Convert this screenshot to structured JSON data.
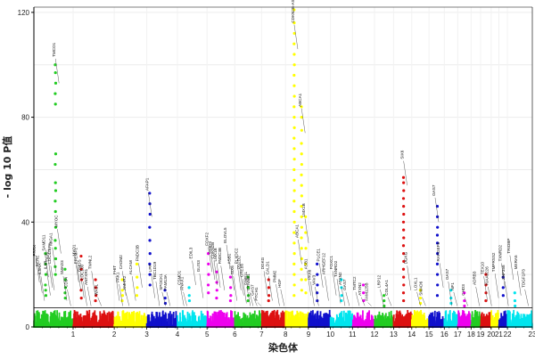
{
  "chart_data": {
    "type": "scatter",
    "title": "",
    "xlabel": "染色体",
    "ylabel": "- log 10 P值",
    "ylim": [
      0,
      122
    ],
    "yticks": [
      0,
      40,
      80,
      120
    ],
    "significance_line": 7.3,
    "grid": true,
    "chromosomes": [
      {
        "name": "1",
        "len": 4.1,
        "color": "#22cc22"
      },
      {
        "name": "2",
        "len": 4.3,
        "color": "#dd1111"
      },
      {
        "name": "3",
        "len": 3.4,
        "color": "#ffff00"
      },
      {
        "name": "4",
        "len": 3.2,
        "color": "#1111cc"
      },
      {
        "name": "5",
        "len": 3.1,
        "color": "#00e5ee"
      },
      {
        "name": "6",
        "len": 2.9,
        "color": "#ee00ee"
      },
      {
        "name": "7",
        "len": 2.8,
        "color": "#22cc22"
      },
      {
        "name": "8",
        "len": 2.5,
        "color": "#dd1111"
      },
      {
        "name": "9",
        "len": 2.4,
        "color": "#ffff00"
      },
      {
        "name": "10",
        "len": 2.3,
        "color": "#1111cc"
      },
      {
        "name": "11",
        "len": 2.3,
        "color": "#00e5ee"
      },
      {
        "name": "12",
        "len": 2.3,
        "color": "#ee00ee"
      },
      {
        "name": "13",
        "len": 2.0,
        "color": "#22cc22"
      },
      {
        "name": "14",
        "len": 1.9,
        "color": "#dd1111"
      },
      {
        "name": "15",
        "len": 1.8,
        "color": "#ffff00"
      },
      {
        "name": "16",
        "len": 1.6,
        "color": "#1111cc"
      },
      {
        "name": "17",
        "len": 1.4,
        "color": "#00e5ee"
      },
      {
        "name": "18",
        "len": 1.4,
        "color": "#ee00ee"
      },
      {
        "name": "19",
        "len": 1.0,
        "color": "#22cc22"
      },
      {
        "name": "20",
        "len": 1.1,
        "color": "#dd1111"
      },
      {
        "name": "21",
        "len": 0.8,
        "color": "#ffff00"
      },
      {
        "name": "22",
        "len": 0.9,
        "color": "#1111cc"
      },
      {
        "name": "23",
        "len": 2.6,
        "color": "#00e5ee"
      }
    ],
    "peaks": [
      {
        "chr": "1",
        "pos": 0.55,
        "pvals": [
          100,
          97,
          93,
          89,
          85,
          66,
          62,
          55,
          52,
          48,
          44,
          38,
          33,
          30,
          26,
          23,
          20
        ]
      },
      {
        "chr": "1",
        "pos": 0.3,
        "pvals": [
          28,
          24,
          20,
          16,
          14,
          12
        ]
      },
      {
        "chr": "1",
        "pos": 0.8,
        "pvals": [
          22,
          18,
          15,
          13,
          11
        ]
      },
      {
        "chr": "2",
        "pos": 0.2,
        "pvals": [
          27,
          22,
          18,
          14,
          11
        ]
      },
      {
        "chr": "2",
        "pos": 0.55,
        "pvals": [
          18,
          15,
          12,
          10
        ]
      },
      {
        "chr": "3",
        "pos": 0.25,
        "pvals": [
          18,
          14,
          12,
          10
        ]
      },
      {
        "chr": "3",
        "pos": 0.7,
        "pvals": [
          24,
          19,
          15,
          12
        ]
      },
      {
        "chr": "4",
        "pos": 0.1,
        "pvals": [
          51,
          47,
          43,
          38,
          33,
          28,
          24,
          20,
          16
        ]
      },
      {
        "chr": "4",
        "pos": 0.6,
        "pvals": [
          14,
          11,
          9
        ]
      },
      {
        "chr": "5",
        "pos": 0.4,
        "pvals": [
          15,
          12,
          10
        ]
      },
      {
        "chr": "6",
        "pos": 0.05,
        "pvals": [
          28,
          24,
          20,
          16,
          13
        ]
      },
      {
        "chr": "6",
        "pos": 0.35,
        "pvals": [
          21,
          17,
          14,
          11
        ]
      },
      {
        "chr": "6",
        "pos": 0.85,
        "pvals": [
          19,
          15,
          12,
          10
        ]
      },
      {
        "chr": "7",
        "pos": 0.5,
        "pvals": [
          19,
          15,
          12,
          10
        ]
      },
      {
        "chr": "8",
        "pos": 0.3,
        "pvals": [
          18,
          15,
          12,
          10
        ]
      },
      {
        "chr": "9",
        "pos": 0.38,
        "pvals": [
          121,
          116,
          112,
          108,
          104,
          100,
          96,
          92,
          88,
          84,
          80,
          76,
          72,
          68,
          64,
          60,
          56,
          52,
          48,
          44,
          40,
          36,
          32,
          28,
          24,
          20,
          16,
          12
        ]
      },
      {
        "chr": "9",
        "pos": 0.7,
        "pvals": [
          84,
          80,
          75,
          70,
          66,
          62,
          58,
          54,
          50,
          46,
          42,
          38,
          34,
          30,
          26,
          22,
          18,
          14
        ]
      },
      {
        "chr": "9",
        "pos": 0.88,
        "pvals": [
          42,
          36,
          30,
          24,
          18,
          13
        ]
      },
      {
        "chr": "10",
        "pos": 0.4,
        "pvals": [
          24,
          20,
          16,
          13,
          10
        ]
      },
      {
        "chr": "11",
        "pos": 0.5,
        "pvals": [
          18,
          15,
          12,
          10
        ]
      },
      {
        "chr": "12",
        "pos": 0.5,
        "pvals": [
          16,
          13,
          10
        ]
      },
      {
        "chr": "13",
        "pos": 0.5,
        "pvals": [
          12,
          10,
          8
        ]
      },
      {
        "chr": "14",
        "pos": 0.55,
        "pvals": [
          57,
          55,
          52,
          49,
          46,
          43,
          40,
          37,
          34,
          31,
          28,
          25,
          22,
          19,
          16,
          13,
          10
        ]
      },
      {
        "chr": "15",
        "pos": 0.5,
        "pvals": [
          14,
          11,
          9
        ]
      },
      {
        "chr": "16",
        "pos": 0.55,
        "pvals": [
          46,
          42,
          38,
          35,
          32,
          28,
          24,
          20,
          16,
          12
        ]
      },
      {
        "chr": "17",
        "pos": 0.5,
        "pvals": [
          14,
          11,
          9
        ]
      },
      {
        "chr": "18",
        "pos": 0.5,
        "pvals": [
          13,
          10,
          8
        ]
      },
      {
        "chr": "20",
        "pos": 0.5,
        "pvals": [
          20,
          16,
          13,
          10
        ]
      },
      {
        "chr": "22",
        "pos": 0.5,
        "pvals": [
          19,
          15,
          12
        ]
      },
      {
        "chr": "23",
        "pos": 0.3,
        "pvals": [
          13,
          10,
          8
        ]
      }
    ],
    "annotations": [
      {
        "chr": "1",
        "pos": 0.05,
        "y": 27,
        "label": "PRRX"
      },
      {
        "chr": "1",
        "pos": 0.12,
        "y": 23,
        "label": "RERE"
      },
      {
        "chr": "1",
        "pos": 0.18,
        "y": 20,
        "label": "IL5RA"
      },
      {
        "chr": "1",
        "pos": 0.28,
        "y": 29,
        "label": "SAMD11"
      },
      {
        "chr": "1",
        "pos": 0.33,
        "y": 22,
        "label": "IL6R"
      },
      {
        "chr": "1",
        "pos": 0.38,
        "y": 25,
        "label": "DARC"
      },
      {
        "chr": "1",
        "pos": 0.43,
        "y": 24,
        "label": "CDC42BPA"
      },
      {
        "chr": "1",
        "pos": 0.47,
        "y": 31,
        "label": "MIGA1"
      },
      {
        "chr": "1",
        "pos": 0.55,
        "y": 103,
        "label": "TMCO1"
      },
      {
        "chr": "1",
        "pos": 0.6,
        "y": 38,
        "label": "MYOC"
      },
      {
        "chr": "1",
        "pos": 0.75,
        "y": 20,
        "label": "SMAD3"
      },
      {
        "chr": "1",
        "pos": 0.85,
        "y": 15,
        "label": "CD34"
      },
      {
        "chr": "2",
        "pos": 0.05,
        "y": 27,
        "label": "MYO1"
      },
      {
        "chr": "2",
        "pos": 0.1,
        "y": 24,
        "label": "EFEMP1"
      },
      {
        "chr": "2",
        "pos": 0.18,
        "y": 21,
        "label": "GMDS"
      },
      {
        "chr": "2",
        "pos": 0.25,
        "y": 18,
        "label": "LOC100"
      },
      {
        "chr": "2",
        "pos": 0.35,
        "y": 16,
        "label": "ANTXR1"
      },
      {
        "chr": "2",
        "pos": 0.45,
        "y": 22,
        "label": "TWNL2"
      },
      {
        "chr": "2",
        "pos": 0.6,
        "y": 12,
        "label": "WASL"
      },
      {
        "chr": "3",
        "pos": 0.05,
        "y": 20,
        "label": "FHIT"
      },
      {
        "chr": "3",
        "pos": 0.15,
        "y": 17,
        "label": "PAK1"
      },
      {
        "chr": "3",
        "pos": 0.25,
        "y": 22,
        "label": "CADM2"
      },
      {
        "chr": "3",
        "pos": 0.35,
        "y": 14,
        "label": "AMHR2"
      },
      {
        "chr": "3",
        "pos": 0.55,
        "y": 20,
        "label": "ALCAM"
      },
      {
        "chr": "3",
        "pos": 0.75,
        "y": 25,
        "label": "FNDC3B"
      },
      {
        "chr": "4",
        "pos": 0.05,
        "y": 52,
        "label": "AFAP1"
      },
      {
        "chr": "4",
        "pos": 0.15,
        "y": 21,
        "label": "LPP"
      },
      {
        "chr": "4",
        "pos": 0.3,
        "y": 18,
        "label": "TBC1D19"
      },
      {
        "chr": "4",
        "pos": 0.5,
        "y": 14,
        "label": "SPOCK1"
      },
      {
        "chr": "4",
        "pos": 0.65,
        "y": 14,
        "label": "FAM13A"
      },
      {
        "chr": "5",
        "pos": 0.1,
        "y": 16,
        "label": "CSMD1"
      },
      {
        "chr": "5",
        "pos": 0.2,
        "y": 14,
        "label": "ANAX1"
      },
      {
        "chr": "5",
        "pos": 0.5,
        "y": 26,
        "label": "EDIL3"
      },
      {
        "chr": "5",
        "pos": 0.75,
        "y": 21,
        "label": "GLIS3"
      },
      {
        "chr": "6",
        "pos": 0.05,
        "y": 31,
        "label": "FOXF2"
      },
      {
        "chr": "6",
        "pos": 0.15,
        "y": 28,
        "label": "GMDS"
      },
      {
        "chr": "6",
        "pos": 0.25,
        "y": 26,
        "label": "CDKN2B"
      },
      {
        "chr": "6",
        "pos": 0.35,
        "y": 25,
        "label": "LMX1B"
      },
      {
        "chr": "6",
        "pos": 0.5,
        "y": 24,
        "label": "FNDC3B"
      },
      {
        "chr": "6",
        "pos": 0.7,
        "y": 32,
        "label": "ELOVL5"
      },
      {
        "chr": "6",
        "pos": 0.85,
        "y": 24,
        "label": "ASB1"
      },
      {
        "chr": "6",
        "pos": 0.95,
        "y": 20,
        "label": "SIX6"
      },
      {
        "chr": "7",
        "pos": 0.1,
        "y": 24,
        "label": "PLXDC2"
      },
      {
        "chr": "7",
        "pos": 0.2,
        "y": 22,
        "label": "PDZD2"
      },
      {
        "chr": "7",
        "pos": 0.3,
        "y": 19,
        "label": "CREB5"
      },
      {
        "chr": "7",
        "pos": 0.45,
        "y": 16,
        "label": "GNB1L"
      },
      {
        "chr": "7",
        "pos": 0.55,
        "y": 14,
        "label": "CTNNB1"
      },
      {
        "chr": "7",
        "pos": 0.7,
        "y": 12,
        "label": "GAS7"
      },
      {
        "chr": "7",
        "pos": 0.85,
        "y": 10,
        "label": "PTCH1"
      },
      {
        "chr": "8",
        "pos": 0.1,
        "y": 22,
        "label": "DGKG"
      },
      {
        "chr": "8",
        "pos": 0.3,
        "y": 20,
        "label": "CALD1"
      },
      {
        "chr": "8",
        "pos": 0.6,
        "y": 17,
        "label": "PMM2"
      },
      {
        "chr": "8",
        "pos": 0.8,
        "y": 15,
        "label": "HGF"
      },
      {
        "chr": "9",
        "pos": 0.38,
        "y": 116,
        "label": "CDKN2B-AS1"
      },
      {
        "chr": "9",
        "pos": 0.55,
        "y": 34,
        "label": "ABCA1"
      },
      {
        "chr": "9",
        "pos": 0.7,
        "y": 84,
        "label": "ABCA1"
      },
      {
        "chr": "9",
        "pos": 0.85,
        "y": 42,
        "label": "LMX1B"
      },
      {
        "chr": "9",
        "pos": 0.95,
        "y": 22,
        "label": "ASB1"
      },
      {
        "chr": "10",
        "pos": 0.1,
        "y": 18,
        "label": "PAX6"
      },
      {
        "chr": "10",
        "pos": 0.3,
        "y": 16,
        "label": "VAV3"
      },
      {
        "chr": "10",
        "pos": 0.5,
        "y": 25,
        "label": "PLCE1"
      },
      {
        "chr": "10",
        "pos": 0.75,
        "y": 20,
        "label": "ARHGEF12"
      },
      {
        "chr": "11",
        "pos": 0.1,
        "y": 22,
        "label": "FOXC1"
      },
      {
        "chr": "11",
        "pos": 0.3,
        "y": 19,
        "label": "TXNRD2"
      },
      {
        "chr": "11",
        "pos": 0.5,
        "y": 16,
        "label": "ATXN2"
      },
      {
        "chr": "11",
        "pos": 0.7,
        "y": 14,
        "label": "GAS7"
      },
      {
        "chr": "12",
        "pos": 0.15,
        "y": 14,
        "label": "TMTC2"
      },
      {
        "chr": "12",
        "pos": 0.4,
        "y": 12,
        "label": "ATXN2"
      },
      {
        "chr": "12",
        "pos": 0.7,
        "y": 10,
        "label": "FAM125B"
      },
      {
        "chr": "13",
        "pos": 0.3,
        "y": 15,
        "label": "LRP12"
      },
      {
        "chr": "13",
        "pos": 0.7,
        "y": 12,
        "label": "COL4A1"
      },
      {
        "chr": "14",
        "pos": 0.55,
        "y": 64,
        "label": "SIX6"
      },
      {
        "chr": "14",
        "pos": 0.75,
        "y": 24,
        "label": "DGKG"
      },
      {
        "chr": "15",
        "pos": 0.3,
        "y": 14,
        "label": "LOXL1"
      },
      {
        "chr": "15",
        "pos": 0.6,
        "y": 12,
        "label": "SMAD6"
      },
      {
        "chr": "16",
        "pos": 0.4,
        "y": 50,
        "label": "GAS7"
      },
      {
        "chr": "16",
        "pos": 0.7,
        "y": 25,
        "label": "RAPGEF5"
      },
      {
        "chr": "17",
        "pos": 0.3,
        "y": 18,
        "label": "GAS7"
      },
      {
        "chr": "17",
        "pos": 0.7,
        "y": 14,
        "label": "NF1"
      },
      {
        "chr": "18",
        "pos": 0.5,
        "y": 12,
        "label": "CHD3"
      },
      {
        "chr": "19",
        "pos": 0.5,
        "y": 16,
        "label": "ADRB3"
      },
      {
        "chr": "20",
        "pos": 0.3,
        "y": 20,
        "label": "TEX10"
      },
      {
        "chr": "20",
        "pos": 0.7,
        "y": 16,
        "label": "KIAA0226"
      },
      {
        "chr": "21",
        "pos": 0.5,
        "y": 21,
        "label": "TMPRSS2"
      },
      {
        "chr": "22",
        "pos": 0.3,
        "y": 25,
        "label": "TXNRD2"
      },
      {
        "chr": "22",
        "pos": 0.7,
        "y": 18,
        "label": "ZNF358"
      },
      {
        "chr": "23",
        "pos": 0.1,
        "y": 28,
        "label": "TRIOBP"
      },
      {
        "chr": "23",
        "pos": 0.4,
        "y": 22,
        "label": "MXRA5"
      },
      {
        "chr": "23",
        "pos": 0.7,
        "y": 15,
        "label": "TDGF1P3"
      }
    ]
  }
}
